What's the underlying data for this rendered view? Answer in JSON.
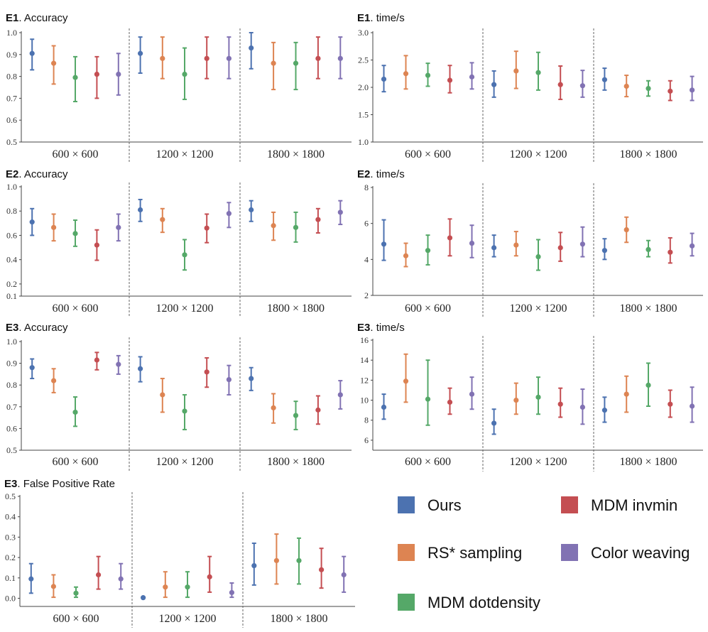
{
  "chart_data": {
    "type": "errorbar",
    "series": [
      {
        "name": "Ours",
        "color": "#4c72b0"
      },
      {
        "name": "RS* sampling",
        "color": "#dd8452"
      },
      {
        "name": "MDM dotdensity",
        "color": "#55a868"
      },
      {
        "name": "MDM invmin",
        "color": "#c44e52"
      },
      {
        "name": "Color weaving",
        "color": "#8172b3"
      }
    ],
    "categories": [
      "600 × 600",
      "1200 × 1200",
      "1800 × 1800"
    ],
    "panels": [
      {
        "id": "e1-accuracy",
        "title_bold": "E1",
        "title_rest": ". Accuracy",
        "ylim": [
          0.5,
          1.0
        ],
        "yticks": [
          "1.0",
          "0.9",
          "0.8",
          "0.7",
          "0.6",
          "0.5"
        ],
        "ytick_values": [
          1.0,
          0.9,
          0.8,
          0.7,
          0.6,
          0.5
        ],
        "points": [
          [
            [
              0.905,
              0.83,
              0.97
            ],
            [
              0.86,
              0.765,
              0.94
            ],
            [
              0.795,
              0.685,
              0.89
            ],
            [
              0.81,
              0.7,
              0.89
            ],
            [
              0.81,
              0.715,
              0.905
            ]
          ],
          [
            [
              0.905,
              0.815,
              0.98
            ],
            [
              0.882,
              0.79,
              0.98
            ],
            [
              0.81,
              0.695,
              0.93
            ],
            [
              0.882,
              0.79,
              0.98
            ],
            [
              0.882,
              0.79,
              0.98
            ]
          ],
          [
            [
              0.93,
              0.835,
              1.0
            ],
            [
              0.86,
              0.74,
              0.955
            ],
            [
              0.86,
              0.74,
              0.955
            ],
            [
              0.882,
              0.79,
              0.98
            ],
            [
              0.882,
              0.79,
              0.98
            ]
          ]
        ]
      },
      {
        "id": "e1-time",
        "title_bold": "E1",
        "title_rest": ". time/s",
        "ylim": [
          1.0,
          3.0
        ],
        "yticks": [
          "3.0",
          "2.5",
          "2.0",
          "1.5",
          "1.0"
        ],
        "ytick_values": [
          3.0,
          2.5,
          2.0,
          1.5,
          1.0
        ],
        "points": [
          [
            [
              2.15,
              1.92,
              2.4
            ],
            [
              2.25,
              1.97,
              2.58
            ],
            [
              2.22,
              2.02,
              2.44
            ],
            [
              2.13,
              1.9,
              2.4
            ],
            [
              2.19,
              1.97,
              2.45
            ]
          ],
          [
            [
              2.05,
              1.82,
              2.3
            ],
            [
              2.3,
              1.98,
              2.66
            ],
            [
              2.27,
              1.95,
              2.64
            ],
            [
              2.05,
              1.78,
              2.39
            ],
            [
              2.03,
              1.82,
              2.31
            ]
          ],
          [
            [
              2.14,
              1.95,
              2.35
            ],
            [
              2.02,
              1.83,
              2.22
            ],
            [
              1.98,
              1.84,
              2.12
            ],
            [
              1.93,
              1.76,
              2.12
            ],
            [
              1.95,
              1.76,
              2.2
            ]
          ]
        ]
      },
      {
        "id": "e2-accuracy",
        "title_bold": "E2",
        "title_rest": ". Accuracy",
        "ylim": [
          0.1,
          1.0
        ],
        "yticks": [
          "1.0",
          "0.8",
          "0.6",
          "0.4",
          "0.2",
          "0.1"
        ],
        "ytick_values": [
          1.0,
          0.8,
          0.6,
          0.4,
          0.2,
          0.1
        ],
        "points": [
          [
            [
              0.71,
              0.6,
              0.82
            ],
            [
              0.665,
              0.555,
              0.775
            ],
            [
              0.615,
              0.51,
              0.725
            ],
            [
              0.52,
              0.395,
              0.645
            ],
            [
              0.665,
              0.555,
              0.775
            ]
          ],
          [
            [
              0.81,
              0.715,
              0.895
            ],
            [
              0.73,
              0.625,
              0.82
            ],
            [
              0.44,
              0.315,
              0.565
            ],
            [
              0.66,
              0.54,
              0.775
            ],
            [
              0.78,
              0.665,
              0.87
            ]
          ],
          [
            [
              0.81,
              0.715,
              0.885
            ],
            [
              0.68,
              0.56,
              0.79
            ],
            [
              0.665,
              0.545,
              0.79
            ],
            [
              0.73,
              0.62,
              0.82
            ],
            [
              0.79,
              0.69,
              0.885
            ]
          ]
        ]
      },
      {
        "id": "e2-time",
        "title_bold": "E2",
        "title_rest": ". time/s",
        "ylim": [
          2,
          8
        ],
        "yticks": [
          "8",
          "6",
          "4",
          "2"
        ],
        "ytick_values": [
          8,
          6,
          4,
          2
        ],
        "points": [
          [
            [
              4.85,
              3.95,
              6.2
            ],
            [
              4.2,
              3.6,
              4.9
            ],
            [
              4.5,
              3.7,
              5.35
            ],
            [
              5.2,
              4.2,
              6.25
            ],
            [
              4.9,
              4.1,
              5.9
            ]
          ],
          [
            [
              4.65,
              4.15,
              5.35
            ],
            [
              4.8,
              4.2,
              5.55
            ],
            [
              4.15,
              3.4,
              5.1
            ],
            [
              4.65,
              3.9,
              5.5
            ],
            [
              4.85,
              4.15,
              5.8
            ]
          ],
          [
            [
              4.5,
              4.0,
              5.15
            ],
            [
              5.65,
              4.95,
              6.35
            ],
            [
              4.55,
              4.15,
              5.05
            ],
            [
              4.4,
              3.8,
              5.2
            ],
            [
              4.75,
              4.2,
              5.45
            ]
          ]
        ]
      },
      {
        "id": "e3-accuracy",
        "title_bold": "E3",
        "title_rest": ". Accuracy",
        "ylim": [
          0.5,
          1.0
        ],
        "yticks": [
          "1.0",
          "0.9",
          "0.8",
          "0.7",
          "0.6",
          "0.5"
        ],
        "ytick_values": [
          1.0,
          0.9,
          0.8,
          0.7,
          0.6,
          0.5
        ],
        "points": [
          [
            [
              0.88,
              0.83,
              0.92
            ],
            [
              0.82,
              0.765,
              0.875
            ],
            [
              0.675,
              0.61,
              0.745
            ],
            [
              0.915,
              0.87,
              0.95
            ],
            [
              0.895,
              0.85,
              0.935
            ]
          ],
          [
            [
              0.875,
              0.815,
              0.93
            ],
            [
              0.755,
              0.675,
              0.83
            ],
            [
              0.68,
              0.595,
              0.755
            ],
            [
              0.86,
              0.79,
              0.925
            ],
            [
              0.825,
              0.755,
              0.89
            ]
          ],
          [
            [
              0.83,
              0.775,
              0.88
            ],
            [
              0.695,
              0.625,
              0.76
            ],
            [
              0.66,
              0.595,
              0.725
            ],
            [
              0.685,
              0.62,
              0.75
            ],
            [
              0.755,
              0.69,
              0.82
            ]
          ]
        ]
      },
      {
        "id": "e3-time",
        "title_bold": "E3",
        "title_rest": ". time/s",
        "ylim": [
          5,
          16
        ],
        "yticks": [
          "16",
          "14",
          "12",
          "10",
          "8",
          "6"
        ],
        "ytick_values": [
          16,
          14,
          12,
          10,
          8,
          6
        ],
        "points": [
          [
            [
              9.3,
              8.1,
              10.6
            ],
            [
              11.9,
              9.8,
              14.6
            ],
            [
              10.1,
              7.5,
              14.0
            ],
            [
              9.8,
              8.6,
              11.2
            ],
            [
              10.6,
              9.1,
              12.3
            ]
          ],
          [
            [
              7.7,
              6.6,
              9.1
            ],
            [
              10.0,
              8.6,
              11.7
            ],
            [
              10.3,
              8.6,
              12.3
            ],
            [
              9.6,
              8.3,
              11.2
            ],
            [
              9.3,
              7.6,
              11.1
            ]
          ],
          [
            [
              9.0,
              7.8,
              10.3
            ],
            [
              10.6,
              8.8,
              12.4
            ],
            [
              11.5,
              9.4,
              13.7
            ],
            [
              9.6,
              8.3,
              11.0
            ],
            [
              9.4,
              7.8,
              11.3
            ]
          ]
        ]
      },
      {
        "id": "e3-fpr",
        "title_bold": "E3",
        "title_rest": ". False Positive Rate",
        "ylim": [
          -0.04,
          0.5
        ],
        "yticks": [
          "0.5",
          "0.4",
          "0.3",
          "0.2",
          "0.1",
          "0.0"
        ],
        "ytick_values": [
          0.5,
          0.4,
          0.3,
          0.2,
          0.1,
          0.0
        ],
        "points": [
          [
            [
              0.095,
              0.025,
              0.17
            ],
            [
              0.058,
              0.005,
              0.115
            ],
            [
              0.025,
              0.005,
              0.055
            ],
            [
              0.115,
              0.045,
              0.205
            ],
            [
              0.095,
              0.045,
              0.17
            ]
          ],
          [
            [
              0.003,
              0.003,
              0.003
            ],
            [
              0.055,
              0.005,
              0.13
            ],
            [
              0.055,
              0.005,
              0.13
            ],
            [
              0.105,
              0.03,
              0.205
            ],
            [
              0.028,
              0.005,
              0.075
            ]
          ],
          [
            [
              0.16,
              0.065,
              0.27
            ],
            [
              0.185,
              0.07,
              0.315
            ],
            [
              0.185,
              0.07,
              0.295
            ],
            [
              0.14,
              0.05,
              0.245
            ],
            [
              0.115,
              0.03,
              0.205
            ]
          ]
        ]
      }
    ]
  }
}
